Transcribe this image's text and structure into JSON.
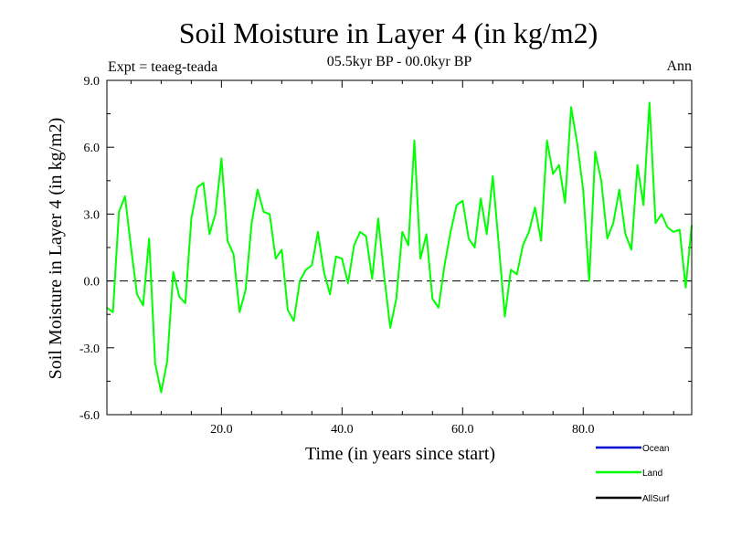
{
  "chart_data": {
    "type": "line",
    "title": "Soil Moisture in Layer 4 (in kg/m2)",
    "subtitle": "05.5kyr BP - 00.0kyr BP",
    "experiment": "Expt = teaeg-teada",
    "period": "Ann",
    "xlabel": "Time (in years since start)",
    "ylabel": "Soil Moisture in Layer 4 (in kg/m2)",
    "xlim": [
      1,
      98
    ],
    "ylim": [
      -6,
      9
    ],
    "x_ticks": [
      20,
      40,
      60,
      80
    ],
    "x_tick_labels": [
      "20.0",
      "40.0",
      "60.0",
      "80.0"
    ],
    "y_ticks": [
      -6,
      -3,
      0,
      3,
      6,
      9
    ],
    "y_tick_labels": [
      "-6.0",
      "-3.0",
      "0.0",
      "3.0",
      "6.0",
      "9.0"
    ],
    "zero_line": true,
    "grid": false,
    "legend_position": "bottom-right",
    "series": [
      {
        "name": "Land",
        "color": "#00ff00",
        "x": [
          1,
          2,
          3,
          4,
          5,
          6,
          7,
          8,
          9,
          10,
          11,
          12,
          13,
          14,
          15,
          16,
          17,
          18,
          19,
          20,
          21,
          22,
          23,
          24,
          25,
          26,
          27,
          28,
          29,
          30,
          31,
          32,
          33,
          34,
          35,
          36,
          37,
          38,
          39,
          40,
          41,
          42,
          43,
          44,
          45,
          46,
          47,
          48,
          49,
          50,
          51,
          52,
          53,
          54,
          55,
          56,
          57,
          58,
          59,
          60,
          61,
          62,
          63,
          64,
          65,
          66,
          67,
          68,
          69,
          70,
          71,
          72,
          73,
          74,
          75,
          76,
          77,
          78,
          79,
          80,
          81,
          82,
          83,
          84,
          85,
          86,
          87,
          88,
          89,
          90,
          91,
          92,
          93,
          94,
          95,
          96,
          97,
          98
        ],
        "values": [
          -1.2,
          -1.4,
          3.1,
          3.8,
          1.5,
          -0.6,
          -1.1,
          1.9,
          -3.7,
          -5.0,
          -3.6,
          0.4,
          -0.7,
          -1.0,
          2.8,
          4.2,
          4.4,
          2.1,
          3.0,
          5.5,
          1.8,
          1.2,
          -1.4,
          -0.4,
          2.6,
          4.1,
          3.1,
          3.0,
          1.0,
          1.4,
          -1.3,
          -1.8,
          0.0,
          0.5,
          0.7,
          2.2,
          0.4,
          -0.6,
          1.1,
          1.0,
          -0.1,
          1.6,
          2.2,
          2.0,
          0.1,
          2.8,
          0.2,
          -2.1,
          -0.8,
          2.2,
          1.6,
          6.3,
          1.0,
          2.1,
          -0.8,
          -1.2,
          0.7,
          2.2,
          3.4,
          3.6,
          1.9,
          1.5,
          3.7,
          2.1,
          4.7,
          1.6,
          -1.6,
          0.5,
          0.3,
          1.6,
          2.2,
          3.3,
          1.8,
          6.3,
          4.8,
          5.2,
          3.5,
          7.8,
          6.2,
          4.1,
          0.0,
          5.8,
          4.5,
          1.9,
          2.6,
          4.1,
          2.1,
          1.4,
          5.2,
          3.4,
          8.0,
          2.6,
          3.0,
          2.4,
          2.2,
          2.3,
          -0.3,
          2.5
        ]
      }
    ],
    "legend": [
      {
        "label": "Ocean",
        "color": "#0000cc"
      },
      {
        "label": "Land",
        "color": "#00ff00"
      },
      {
        "label": "AllSurf",
        "color": "#000000"
      }
    ]
  }
}
